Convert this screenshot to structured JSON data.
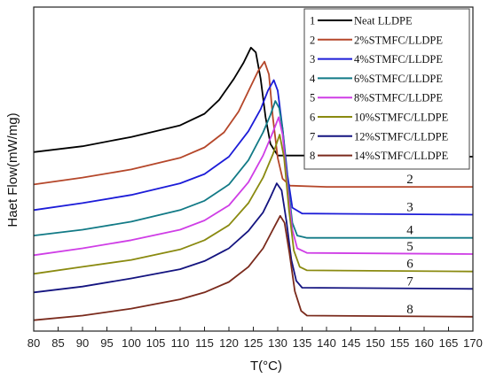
{
  "chart_data": {
    "type": "line",
    "xlabel": "T(°C)",
    "ylabel": "Haet Flow(mW/mg)",
    "xlim": [
      80,
      170
    ],
    "x_ticks": [
      "80",
      "85",
      "90",
      "95",
      "100",
      "105",
      "110",
      "115",
      "120",
      "125",
      "130",
      "135",
      "140",
      "145",
      "150",
      "155",
      "160",
      "165",
      "170"
    ],
    "grid": false,
    "legend_position": "top-right",
    "series": [
      {
        "name": "Neat LLDPE",
        "legend_index": "1",
        "curve_label": "1",
        "color": "#000000",
        "points": [
          [
            80,
            1.25
          ],
          [
            90,
            1.2
          ],
          [
            100,
            1.12
          ],
          [
            110,
            1.02
          ],
          [
            115,
            0.92
          ],
          [
            118,
            0.8
          ],
          [
            121,
            0.62
          ],
          [
            123,
            0.48
          ],
          [
            124.5,
            0.35
          ],
          [
            125.5,
            0.39
          ],
          [
            126.5,
            0.62
          ],
          [
            127.5,
            0.95
          ],
          [
            128.5,
            1.18
          ],
          [
            130,
            1.28
          ],
          [
            140,
            1.28
          ],
          [
            170,
            1.29
          ]
        ]
      },
      {
        "name": "2%STMFC/LLDPE",
        "legend_index": "2",
        "curve_label": "2",
        "color": "#b5472a",
        "points": [
          [
            80,
            1.53
          ],
          [
            90,
            1.47
          ],
          [
            100,
            1.4
          ],
          [
            110,
            1.3
          ],
          [
            115,
            1.21
          ],
          [
            119,
            1.08
          ],
          [
            122,
            0.9
          ],
          [
            124.5,
            0.68
          ],
          [
            126,
            0.55
          ],
          [
            127.3,
            0.47
          ],
          [
            128.2,
            0.58
          ],
          [
            129,
            0.95
          ],
          [
            130,
            1.3
          ],
          [
            131,
            1.48
          ],
          [
            132.5,
            1.54
          ],
          [
            140,
            1.55
          ],
          [
            170,
            1.55
          ]
        ]
      },
      {
        "name": "4%STMFC/LLDPE",
        "legend_index": "3",
        "curve_label": "3",
        "color": "#1c1cd8",
        "points": [
          [
            80,
            1.75
          ],
          [
            90,
            1.69
          ],
          [
            100,
            1.62
          ],
          [
            110,
            1.52
          ],
          [
            115,
            1.44
          ],
          [
            120,
            1.29
          ],
          [
            124,
            1.07
          ],
          [
            126.5,
            0.88
          ],
          [
            128,
            0.72
          ],
          [
            129.2,
            0.63
          ],
          [
            130,
            0.72
          ],
          [
            131,
            1.05
          ],
          [
            132,
            1.45
          ],
          [
            133,
            1.73
          ],
          [
            135,
            1.78
          ],
          [
            170,
            1.79
          ]
        ]
      },
      {
        "name": "6%STMFC/LLDPE",
        "legend_index": "4",
        "curve_label": "4",
        "color": "#127a86",
        "points": [
          [
            80,
            1.97
          ],
          [
            90,
            1.92
          ],
          [
            100,
            1.85
          ],
          [
            110,
            1.75
          ],
          [
            115,
            1.67
          ],
          [
            120,
            1.53
          ],
          [
            124,
            1.32
          ],
          [
            127,
            1.08
          ],
          [
            128.5,
            0.93
          ],
          [
            129.5,
            0.81
          ],
          [
            130.3,
            0.87
          ],
          [
            131,
            1.05
          ],
          [
            132,
            1.5
          ],
          [
            133,
            1.86
          ],
          [
            134,
            1.97
          ],
          [
            136,
            1.99
          ],
          [
            170,
            1.99
          ]
        ]
      },
      {
        "name": "8%STMFC/LLDPE",
        "legend_index": "5",
        "curve_label": "5",
        "color": "#cf3ee6",
        "points": [
          [
            80,
            2.14
          ],
          [
            90,
            2.08
          ],
          [
            100,
            2.01
          ],
          [
            110,
            1.92
          ],
          [
            115,
            1.84
          ],
          [
            120,
            1.71
          ],
          [
            124,
            1.51
          ],
          [
            127,
            1.28
          ],
          [
            129,
            1.08
          ],
          [
            130.2,
            0.95
          ],
          [
            131,
            1.1
          ],
          [
            132,
            1.55
          ],
          [
            133,
            1.92
          ],
          [
            134,
            2.08
          ],
          [
            136,
            2.12
          ],
          [
            170,
            2.13
          ]
        ]
      },
      {
        "name": "10%STMFC/LLDPE",
        "legend_index": "6",
        "curve_label": "6",
        "color": "#8a8a10",
        "points": [
          [
            80,
            2.3
          ],
          [
            90,
            2.24
          ],
          [
            100,
            2.18
          ],
          [
            110,
            2.09
          ],
          [
            115,
            2.01
          ],
          [
            120,
            1.88
          ],
          [
            124,
            1.69
          ],
          [
            127,
            1.47
          ],
          [
            129,
            1.27
          ],
          [
            130.4,
            1.1
          ],
          [
            131.3,
            1.3
          ],
          [
            132.3,
            1.75
          ],
          [
            133.3,
            2.1
          ],
          [
            134.5,
            2.24
          ],
          [
            136,
            2.27
          ],
          [
            170,
            2.28
          ]
        ]
      },
      {
        "name": "12%STMFC/LLDPE",
        "legend_index": "7",
        "curve_label": "7",
        "color": "#141480",
        "points": [
          [
            80,
            2.46
          ],
          [
            90,
            2.41
          ],
          [
            100,
            2.34
          ],
          [
            110,
            2.26
          ],
          [
            115,
            2.19
          ],
          [
            120,
            2.08
          ],
          [
            124,
            1.93
          ],
          [
            127,
            1.77
          ],
          [
            128.5,
            1.64
          ],
          [
            129.8,
            1.52
          ],
          [
            130.8,
            1.58
          ],
          [
            131.8,
            1.85
          ],
          [
            132.8,
            2.18
          ],
          [
            133.8,
            2.36
          ],
          [
            135,
            2.42
          ],
          [
            170,
            2.43
          ]
        ]
      },
      {
        "name": "14%STMFC/LLDPE",
        "legend_index": "8",
        "curve_label": "8",
        "color": "#7a2a1c",
        "points": [
          [
            80,
            2.7
          ],
          [
            90,
            2.66
          ],
          [
            100,
            2.6
          ],
          [
            110,
            2.52
          ],
          [
            115,
            2.46
          ],
          [
            120,
            2.37
          ],
          [
            124,
            2.24
          ],
          [
            127,
            2.08
          ],
          [
            129,
            1.92
          ],
          [
            130.5,
            1.8
          ],
          [
            131.4,
            1.86
          ],
          [
            132.4,
            2.12
          ],
          [
            133.5,
            2.45
          ],
          [
            134.8,
            2.62
          ],
          [
            136,
            2.66
          ],
          [
            170,
            2.67
          ]
        ]
      }
    ]
  }
}
